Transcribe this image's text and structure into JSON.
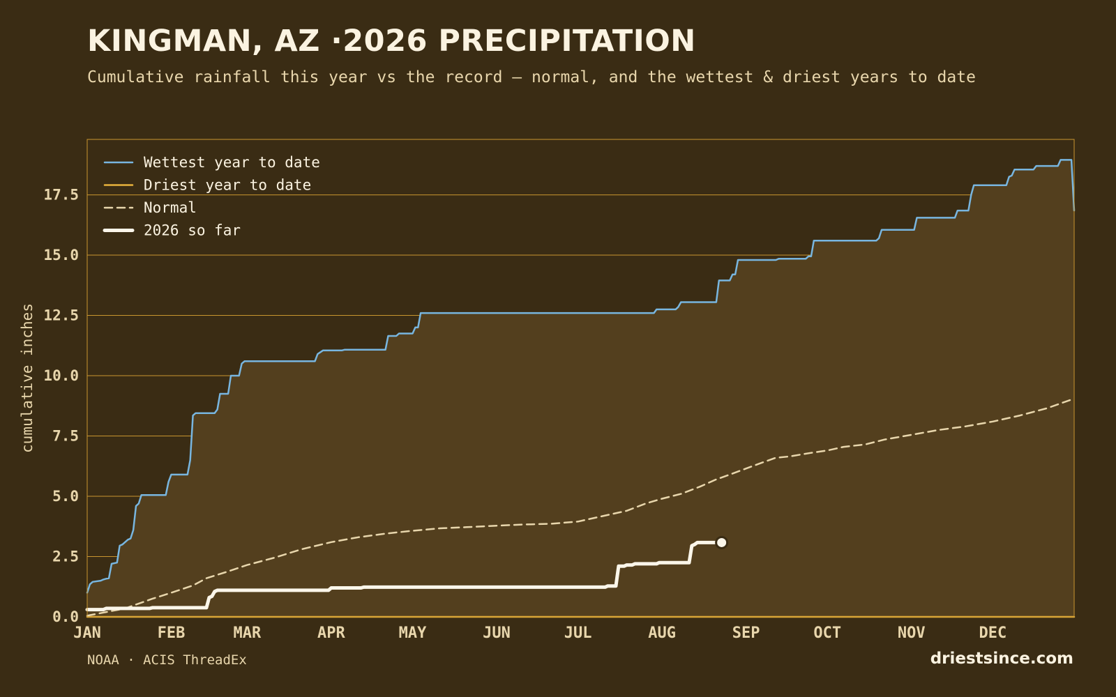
{
  "header": {
    "title": "KINGMAN, AZ ·2026 PRECIPITATION",
    "subtitle": "Cumulative rainfall this year vs the record — normal, and the wettest & driest years to date"
  },
  "footer": {
    "source": "NOAA · ACIS ThreadEx",
    "brand": "driestsince.com"
  },
  "colors": {
    "background": "#3a2c14",
    "plot_fill": "#533f1e",
    "grid": "#c9962f",
    "wettest": "#78b6e0",
    "driest": "#e8b23c",
    "normal": "#e8d6ac",
    "current": "#fbf6ea"
  },
  "chart_data": {
    "type": "line",
    "title": "KINGMAN, AZ ·2026 PRECIPITATION",
    "xlabel": "",
    "ylabel": "cumulative inches",
    "xlim": [
      1,
      365
    ],
    "ylim": [
      0,
      19.8
    ],
    "x_unit": "day of year",
    "grid": true,
    "legend_position": "top-left",
    "x_ticks": [
      {
        "label": "JAN",
        "day": 1
      },
      {
        "label": "FEB",
        "day": 32
      },
      {
        "label": "MAR",
        "day": 60
      },
      {
        "label": "APR",
        "day": 91
      },
      {
        "label": "MAY",
        "day": 121
      },
      {
        "label": "JUN",
        "day": 152
      },
      {
        "label": "JUL",
        "day": 182
      },
      {
        "label": "AUG",
        "day": 213
      },
      {
        "label": "SEP",
        "day": 244
      },
      {
        "label": "OCT",
        "day": 274
      },
      {
        "label": "NOV",
        "day": 305
      },
      {
        "label": "DEC",
        "day": 335
      }
    ],
    "y_ticks": [
      "0.0",
      "2.5",
      "5.0",
      "7.5",
      "10.0",
      "12.5",
      "15.0",
      "17.5"
    ],
    "y_tick_values": [
      0,
      2.5,
      5,
      7.5,
      10,
      12.5,
      15,
      17.5
    ],
    "series": [
      {
        "name": "Wettest year to date",
        "style": "solid",
        "points": [
          [
            1,
            1.0
          ],
          [
            2,
            1.35
          ],
          [
            3,
            1.45
          ],
          [
            6,
            1.5
          ],
          [
            7,
            1.55
          ],
          [
            8,
            1.58
          ],
          [
            9,
            1.6
          ],
          [
            10,
            2.2
          ],
          [
            12,
            2.25
          ],
          [
            13,
            2.95
          ],
          [
            14,
            3.0
          ],
          [
            16,
            3.2
          ],
          [
            17,
            3.25
          ],
          [
            18,
            3.6
          ],
          [
            19,
            4.6
          ],
          [
            20,
            4.7
          ],
          [
            21,
            5.05
          ],
          [
            30,
            5.05
          ],
          [
            31,
            5.6
          ],
          [
            32,
            5.9
          ],
          [
            38,
            5.9
          ],
          [
            39,
            6.5
          ],
          [
            40,
            8.35
          ],
          [
            41,
            8.45
          ],
          [
            48,
            8.45
          ],
          [
            49,
            8.6
          ],
          [
            50,
            9.25
          ],
          [
            53,
            9.25
          ],
          [
            54,
            10.0
          ],
          [
            57,
            10.0
          ],
          [
            58,
            10.5
          ],
          [
            59,
            10.6
          ],
          [
            85,
            10.6
          ],
          [
            86,
            10.9
          ],
          [
            88,
            11.05
          ],
          [
            95,
            11.05
          ],
          [
            96,
            11.08
          ],
          [
            111,
            11.08
          ],
          [
            112,
            11.65
          ],
          [
            115,
            11.65
          ],
          [
            116,
            11.75
          ],
          [
            121,
            11.75
          ],
          [
            122,
            12.0
          ],
          [
            123,
            12.0
          ],
          [
            124,
            12.6
          ],
          [
            210,
            12.6
          ],
          [
            211,
            12.75
          ],
          [
            218,
            12.75
          ],
          [
            219,
            12.85
          ],
          [
            220,
            13.05
          ],
          [
            233,
            13.05
          ],
          [
            234,
            13.95
          ],
          [
            238,
            13.95
          ],
          [
            239,
            14.2
          ],
          [
            240,
            14.2
          ],
          [
            241,
            14.8
          ],
          [
            255,
            14.8
          ],
          [
            256,
            14.85
          ],
          [
            266,
            14.85
          ],
          [
            267,
            14.95
          ],
          [
            268,
            14.95
          ],
          [
            269,
            15.6
          ],
          [
            292,
            15.6
          ],
          [
            293,
            15.7
          ],
          [
            294,
            16.05
          ],
          [
            306,
            16.05
          ],
          [
            307,
            16.55
          ],
          [
            321,
            16.55
          ],
          [
            322,
            16.85
          ],
          [
            326,
            16.85
          ],
          [
            327,
            17.5
          ],
          [
            328,
            17.9
          ],
          [
            340,
            17.9
          ],
          [
            341,
            18.25
          ],
          [
            342,
            18.3
          ],
          [
            343,
            18.55
          ],
          [
            350,
            18.55
          ],
          [
            351,
            18.7
          ],
          [
            359,
            18.7
          ],
          [
            360,
            18.95
          ],
          [
            364,
            18.95
          ],
          [
            365,
            16.85
          ]
        ]
      },
      {
        "name": "Driest year to date",
        "style": "solid",
        "points": [
          [
            1,
            0.0
          ],
          [
            365,
            0.0
          ]
        ]
      },
      {
        "name": "Normal",
        "style": "dashed",
        "points": [
          [
            1,
            0.05
          ],
          [
            15,
            0.35
          ],
          [
            25,
            0.75
          ],
          [
            32,
            1.0
          ],
          [
            40,
            1.3
          ],
          [
            45,
            1.6
          ],
          [
            52,
            1.85
          ],
          [
            60,
            2.15
          ],
          [
            70,
            2.45
          ],
          [
            80,
            2.8
          ],
          [
            91,
            3.1
          ],
          [
            101,
            3.3
          ],
          [
            111,
            3.45
          ],
          [
            121,
            3.57
          ],
          [
            131,
            3.67
          ],
          [
            141,
            3.72
          ],
          [
            152,
            3.78
          ],
          [
            162,
            3.83
          ],
          [
            172,
            3.86
          ],
          [
            182,
            3.95
          ],
          [
            190,
            4.15
          ],
          [
            200,
            4.4
          ],
          [
            207,
            4.7
          ],
          [
            213,
            4.9
          ],
          [
            220,
            5.1
          ],
          [
            227,
            5.4
          ],
          [
            233,
            5.7
          ],
          [
            238,
            5.9
          ],
          [
            244,
            6.15
          ],
          [
            250,
            6.4
          ],
          [
            255,
            6.6
          ],
          [
            260,
            6.65
          ],
          [
            268,
            6.8
          ],
          [
            274,
            6.9
          ],
          [
            280,
            7.05
          ],
          [
            288,
            7.15
          ],
          [
            295,
            7.35
          ],
          [
            305,
            7.55
          ],
          [
            315,
            7.75
          ],
          [
            325,
            7.9
          ],
          [
            335,
            8.1
          ],
          [
            345,
            8.35
          ],
          [
            355,
            8.65
          ],
          [
            365,
            9.05
          ]
        ]
      },
      {
        "name": "2026 so far",
        "style": "thick",
        "points": [
          [
            1,
            0.3
          ],
          [
            7,
            0.3
          ],
          [
            8,
            0.35
          ],
          [
            24,
            0.35
          ],
          [
            25,
            0.38
          ],
          [
            45,
            0.38
          ],
          [
            46,
            0.8
          ],
          [
            47,
            0.85
          ],
          [
            48,
            1.05
          ],
          [
            49,
            1.1
          ],
          [
            90,
            1.1
          ],
          [
            91,
            1.2
          ],
          [
            102,
            1.2
          ],
          [
            103,
            1.23
          ],
          [
            192,
            1.23
          ],
          [
            193,
            1.28
          ],
          [
            196,
            1.28
          ],
          [
            197,
            2.1
          ],
          [
            199,
            2.1
          ],
          [
            200,
            2.15
          ],
          [
            202,
            2.15
          ],
          [
            203,
            2.2
          ],
          [
            211,
            2.2
          ],
          [
            212,
            2.25
          ],
          [
            223,
            2.25
          ],
          [
            224,
            2.95
          ],
          [
            225,
            3.0
          ],
          [
            226,
            3.08
          ],
          [
            235,
            3.08
          ]
        ]
      }
    ]
  }
}
